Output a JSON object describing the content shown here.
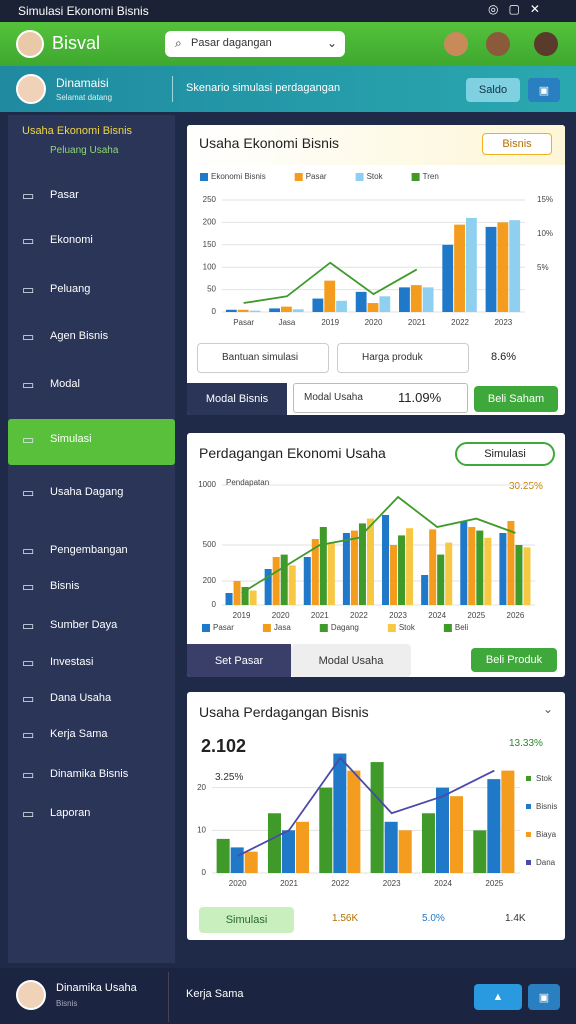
{
  "window": {
    "title": "Simulasi Ekonomi Bisnis"
  },
  "header": {
    "brand": "Bisval",
    "search": "Pasar dagangan"
  },
  "subheader": {
    "user": "Dinamaisi",
    "user_sub": "Selamat datang",
    "caption": "Skenario simulasi perdagangan",
    "button": "Saldo"
  },
  "sidebar": {
    "heading": "Usaha Ekonomi Bisnis",
    "subheading": "Peluang Usaha",
    "items": [
      {
        "label": "Pasar"
      },
      {
        "label": "Ekonomi"
      },
      {
        "label": "Peluang"
      },
      {
        "label": "Agen Bisnis"
      },
      {
        "label": "Modal"
      },
      {
        "label": "Simulasi",
        "active": true
      },
      {
        "label": "Usaha Dagang"
      },
      {
        "label": "Pengembangan"
      },
      {
        "label": "Bisnis"
      },
      {
        "label": "Sumber Daya"
      },
      {
        "label": "Investasi"
      },
      {
        "label": "Dana Usaha"
      },
      {
        "label": "Kerja Sama"
      },
      {
        "label": "Dinamika Bisnis"
      },
      {
        "label": "Laporan"
      }
    ]
  },
  "panels": [
    {
      "title": "Usaha Ekonomi Bisnis",
      "badge": "Bisnis",
      "chart": {
        "type": "bar",
        "categories": [
          "Pasar",
          "Jasa",
          "2019",
          "2020",
          "2021",
          "2022",
          "2023"
        ],
        "ylim": [
          0,
          250
        ],
        "yticks": [
          0,
          50,
          100,
          150,
          200,
          250
        ],
        "right_labels": [
          "15%",
          "10%",
          "5%"
        ],
        "series": [
          {
            "name": "Ekonomi Bisnis",
            "color": "#1f78c8",
            "values": [
              5,
              8,
              30,
              45,
              55,
              150,
              190
            ]
          },
          {
            "name": "Pasar",
            "color": "#f39c1e",
            "values": [
              5,
              12,
              70,
              20,
              60,
              195,
              200
            ]
          },
          {
            "name": "Stok",
            "color": "#8fd0f0",
            "values": [
              3,
              6,
              25,
              35,
              55,
              210,
              205
            ]
          },
          {
            "name": "Tren",
            "type": "line",
            "color": "#3f9a2a",
            "values": [
              20,
              35,
              110,
              40,
              95,
              null,
              null
            ]
          }
        ]
      },
      "controls": [
        "Bantuan simulasi",
        "Harga produk",
        "8.6%"
      ],
      "footer": {
        "left": "Modal Bisnis",
        "input": "Modal Usaha",
        "input_value": "11.09%",
        "button": "Beli Saham"
      }
    },
    {
      "title": "Perdagangan Ekonomi Usaha",
      "badge": "Simulasi",
      "note": "30.25%",
      "chart": {
        "type": "bar",
        "inner_label": "Pendapatan",
        "categories": [
          "2019",
          "2020",
          "2021",
          "2022",
          "2023",
          "2024",
          "2025",
          "2026"
        ],
        "ylim": [
          0,
          1000
        ],
        "yticks": [
          0,
          200,
          500,
          1000
        ],
        "series": [
          {
            "name": "Pasar",
            "color": "#1f78c8",
            "values": [
              100,
              300,
              400,
              600,
              750,
              250,
              700,
              600
            ]
          },
          {
            "name": "Jasa",
            "color": "#f39c1e",
            "values": [
              200,
              400,
              550,
              620,
              500,
              630,
              650,
              700
            ]
          },
          {
            "name": "Dagang",
            "color": "#3f9a2a",
            "values": [
              150,
              420,
              650,
              680,
              580,
              420,
              620,
              500
            ]
          },
          {
            "name": "Stok",
            "color": "#f7c843",
            "values": [
              120,
              330,
              520,
              720,
              640,
              520,
              560,
              480
            ]
          },
          {
            "name": "Beli",
            "type": "line",
            "color": "#3f9a2a",
            "values": [
              100,
              300,
              500,
              560,
              900,
              650,
              720,
              600
            ]
          }
        ]
      },
      "footer": {
        "left": "Set Pasar",
        "input": "Modal Usaha",
        "button": "Beli Produk"
      }
    },
    {
      "title": "Usaha Perdagangan Bisnis",
      "big": "2.102",
      "note": "13.33%",
      "sub": "3.25%",
      "chart": {
        "type": "bar",
        "categories": [
          "2020",
          "2021",
          "2022",
          "2023",
          "2024",
          "2025"
        ],
        "ylim": [
          0,
          30
        ],
        "yticks": [
          0,
          10,
          20
        ],
        "series": [
          {
            "name": "Stok",
            "color": "#3f9a2a",
            "values": [
              8,
              14,
              20,
              26,
              14,
              10
            ]
          },
          {
            "name": "Bisnis",
            "color": "#1f78c8",
            "values": [
              6,
              10,
              28,
              12,
              20,
              22
            ]
          },
          {
            "name": "Biaya",
            "color": "#f39c1e",
            "values": [
              5,
              12,
              24,
              10,
              18,
              24
            ]
          },
          {
            "name": "Dana",
            "type": "line",
            "color": "#4a4aa8",
            "values": [
              4,
              10,
              27,
              14,
              18,
              24
            ]
          }
        ]
      },
      "stats": [
        "Simulasi",
        "1.56K",
        "5.0%",
        "1.4K"
      ]
    }
  ],
  "bottombar": {
    "user": "Dinamika Usaha",
    "user_sub": "Bisnis",
    "caption": "Kerja Sama"
  }
}
